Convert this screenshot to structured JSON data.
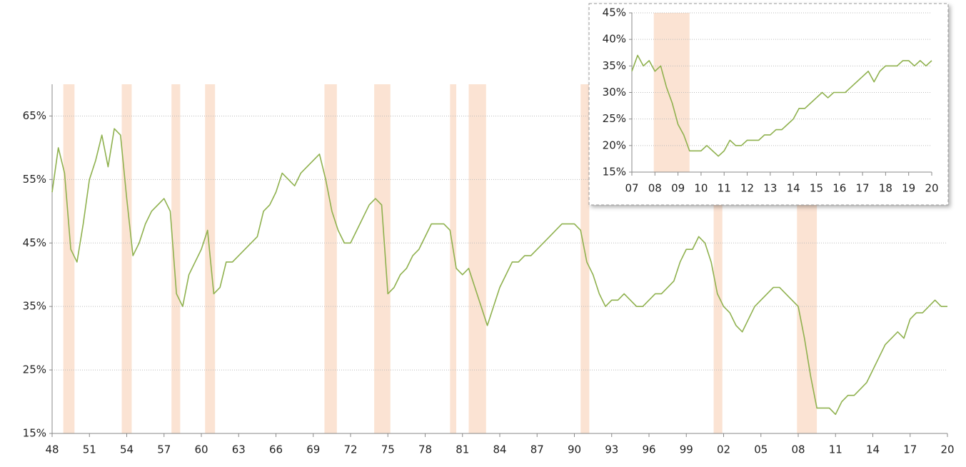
{
  "chart_data": [
    {
      "type": "line",
      "x": [
        1948,
        1948.5,
        1949,
        1949.5,
        1950,
        1950.5,
        1951,
        1951.5,
        1952,
        1952.5,
        1953,
        1953.5,
        1954,
        1954.5,
        1955,
        1955.5,
        1956,
        1956.5,
        1957,
        1957.5,
        1958,
        1958.5,
        1959,
        1959.5,
        1960,
        1960.5,
        1961,
        1961.5,
        1962,
        1962.5,
        1963,
        1963.5,
        1964,
        1964.5,
        1965,
        1965.5,
        1966,
        1966.5,
        1967,
        1967.5,
        1968,
        1968.5,
        1969,
        1969.5,
        1970,
        1970.5,
        1971,
        1971.5,
        1972,
        1972.5,
        1973,
        1973.5,
        1974,
        1974.5,
        1975,
        1975.5,
        1976,
        1976.5,
        1977,
        1977.5,
        1978,
        1978.5,
        1979,
        1979.5,
        1980,
        1980.5,
        1981,
        1981.5,
        1982,
        1982.5,
        1983,
        1983.5,
        1984,
        1984.5,
        1985,
        1985.5,
        1986,
        1986.5,
        1987,
        1987.5,
        1988,
        1988.5,
        1989,
        1989.5,
        1990,
        1990.5,
        1991,
        1991.5,
        1992,
        1992.5,
        1993,
        1993.5,
        1994,
        1994.5,
        1995,
        1995.5,
        1996,
        1996.5,
        1997,
        1997.5,
        1998,
        1998.5,
        1999,
        1999.5,
        2000,
        2000.5,
        2001,
        2001.5,
        2002,
        2002.5,
        2003,
        2003.5,
        2004,
        2004.5,
        2005,
        2005.5,
        2006,
        2006.5,
        2007,
        2007.5,
        2008,
        2008.5,
        2009,
        2009.5,
        2010,
        2010.5,
        2011,
        2011.5,
        2012,
        2012.5,
        2013,
        2013.5,
        2014,
        2014.5,
        2015,
        2015.5,
        2016,
        2016.5,
        2017,
        2017.5,
        2018,
        2018.5,
        2019,
        2019.5,
        2020
      ],
      "series": [
        {
          "color": "#8fb14e",
          "values": [
            53,
            60,
            56,
            44,
            42,
            48,
            55,
            58,
            62,
            57,
            63,
            62,
            52,
            43,
            45,
            48,
            50,
            51,
            52,
            50,
            37,
            35,
            40,
            42,
            44,
            47,
            37,
            38,
            42,
            42,
            43,
            44,
            45,
            46,
            50,
            51,
            53,
            56,
            55,
            54,
            56,
            57,
            58,
            59,
            55,
            50,
            47,
            45,
            45,
            47,
            49,
            51,
            52,
            51,
            37,
            38,
            40,
            41,
            43,
            44,
            46,
            48,
            48,
            48,
            47,
            41,
            40,
            41,
            38,
            35,
            32,
            35,
            38,
            40,
            42,
            42,
            43,
            43,
            44,
            45,
            46,
            47,
            48,
            48,
            48,
            47,
            42,
            40,
            37,
            35,
            36,
            36,
            37,
            36,
            35,
            35,
            36,
            37,
            37,
            38,
            39,
            42,
            44,
            44,
            46,
            45,
            42,
            37,
            35,
            34,
            32,
            31,
            33,
            35,
            36,
            37,
            38,
            38,
            37,
            36,
            35,
            30,
            24,
            19,
            19,
            19,
            18,
            20,
            21,
            21,
            22,
            23,
            25,
            27,
            29,
            30,
            31,
            30,
            33,
            34,
            34,
            35,
            36,
            35,
            35
          ]
        }
      ],
      "recessions": [
        [
          1948.9,
          1949.8
        ],
        [
          1953.6,
          1954.4
        ],
        [
          1957.6,
          1958.3
        ],
        [
          1960.3,
          1961.1
        ],
        [
          1969.9,
          1970.9
        ],
        [
          1973.9,
          1975.2
        ],
        [
          1980.0,
          1980.5
        ],
        [
          1981.5,
          1982.9
        ],
        [
          1990.5,
          1991.2
        ],
        [
          2001.2,
          2001.9
        ],
        [
          2007.9,
          2009.5
        ]
      ],
      "recession_color": "#fbe3d3",
      "xlim": [
        1948,
        2020
      ],
      "xticks": [
        {
          "value": 1948,
          "label": "48"
        },
        {
          "value": 1951,
          "label": "51"
        },
        {
          "value": 1954,
          "label": "54"
        },
        {
          "value": 1957,
          "label": "57"
        },
        {
          "value": 1960,
          "label": "60"
        },
        {
          "value": 1963,
          "label": "63"
        },
        {
          "value": 1966,
          "label": "66"
        },
        {
          "value": 1969,
          "label": "69"
        },
        {
          "value": 1972,
          "label": "72"
        },
        {
          "value": 1975,
          "label": "75"
        },
        {
          "value": 1978,
          "label": "78"
        },
        {
          "value": 1981,
          "label": "81"
        },
        {
          "value": 1984,
          "label": "84"
        },
        {
          "value": 1987,
          "label": "87"
        },
        {
          "value": 1990,
          "label": "90"
        },
        {
          "value": 1993,
          "label": "93"
        },
        {
          "value": 1996,
          "label": "96"
        },
        {
          "value": 1999,
          "label": "99"
        },
        {
          "value": 2002,
          "label": "02"
        },
        {
          "value": 2005,
          "label": "05"
        },
        {
          "value": 2008,
          "label": "08"
        },
        {
          "value": 2011,
          "label": "11"
        },
        {
          "value": 2014,
          "label": "14"
        },
        {
          "value": 2017,
          "label": "17"
        },
        {
          "value": 2020,
          "label": "20"
        }
      ],
      "ylim": [
        15,
        70
      ],
      "yticks": [
        {
          "value": 15,
          "label": "15%"
        },
        {
          "value": 25,
          "label": "25%"
        },
        {
          "value": 35,
          "label": "35%"
        },
        {
          "value": 45,
          "label": "45%"
        },
        {
          "value": 55,
          "label": "55%"
        },
        {
          "value": 65,
          "label": "65%"
        }
      ],
      "grid": true
    },
    {
      "type": "line",
      "x": [
        2007,
        2007.25,
        2007.5,
        2007.75,
        2008,
        2008.25,
        2008.5,
        2008.75,
        2009,
        2009.25,
        2009.5,
        2009.75,
        2010,
        2010.25,
        2010.5,
        2010.75,
        2011,
        2011.25,
        2011.5,
        2011.75,
        2012,
        2012.25,
        2012.5,
        2012.75,
        2013,
        2013.25,
        2013.5,
        2013.75,
        2014,
        2014.25,
        2014.5,
        2014.75,
        2015,
        2015.25,
        2015.5,
        2015.75,
        2016,
        2016.25,
        2016.5,
        2016.75,
        2017,
        2017.25,
        2017.5,
        2017.75,
        2018,
        2018.25,
        2018.5,
        2018.75,
        2019,
        2019.25,
        2019.5,
        2019.75,
        2020
      ],
      "series": [
        {
          "color": "#8fb14e",
          "values": [
            34,
            37,
            35,
            36,
            34,
            35,
            31,
            28,
            24,
            22,
            19,
            19,
            19,
            20,
            19,
            18,
            19,
            21,
            20,
            20,
            21,
            21,
            21,
            22,
            22,
            23,
            23,
            24,
            25,
            27,
            27,
            28,
            29,
            30,
            29,
            30,
            30,
            30,
            31,
            32,
            33,
            34,
            32,
            34,
            35,
            35,
            35,
            36,
            36,
            35,
            36,
            35,
            36
          ]
        }
      ],
      "recessions": [
        [
          2007.95,
          2009.5
        ]
      ],
      "recession_color": "#fbe3d3",
      "xlim": [
        2007,
        2020
      ],
      "xticks": [
        {
          "value": 2007,
          "label": "07"
        },
        {
          "value": 2008,
          "label": "08"
        },
        {
          "value": 2009,
          "label": "09"
        },
        {
          "value": 2010,
          "label": "10"
        },
        {
          "value": 2011,
          "label": "11"
        },
        {
          "value": 2012,
          "label": "12"
        },
        {
          "value": 2013,
          "label": "13"
        },
        {
          "value": 2014,
          "label": "14"
        },
        {
          "value": 2015,
          "label": "15"
        },
        {
          "value": 2016,
          "label": "16"
        },
        {
          "value": 2017,
          "label": "17"
        },
        {
          "value": 2018,
          "label": "18"
        },
        {
          "value": 2019,
          "label": "19"
        },
        {
          "value": 2020,
          "label": "20"
        }
      ],
      "ylim": [
        15,
        45
      ],
      "yticks": [
        {
          "value": 15,
          "label": "15%"
        },
        {
          "value": 20,
          "label": "20%"
        },
        {
          "value": 25,
          "label": "25%"
        },
        {
          "value": 30,
          "label": "30%"
        },
        {
          "value": 35,
          "label": "35%"
        },
        {
          "value": 40,
          "label": "40%"
        },
        {
          "value": 45,
          "label": "45%"
        }
      ],
      "grid": true
    }
  ]
}
